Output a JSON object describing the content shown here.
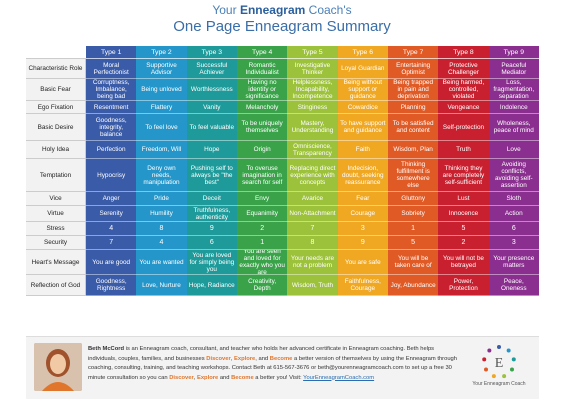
{
  "header": {
    "line1_pre": "Your ",
    "line1_bold": "Enneagram",
    "line1_post": " Coach's",
    "line2": "One Page Enneagram Summary"
  },
  "colors": {
    "type1": "#3a5ba8",
    "type2": "#2596c9",
    "type3": "#1f9a9a",
    "type4": "#3aa34a",
    "type5": "#9cc13a",
    "type6": "#f0a823",
    "type7": "#e05a25",
    "type8": "#c8202f",
    "type9": "#8a2f8f",
    "label_bg": "#f2f2f2",
    "accent": "#e0762b"
  },
  "table": {
    "types": [
      "Type 1",
      "Type 2",
      "Type 3",
      "Type 4",
      "Type 5",
      "Type 6",
      "Type 7",
      "Type 8",
      "Type 9"
    ],
    "rows": [
      {
        "label": "Characteristic Role",
        "cells": [
          "Moral Perfectionist",
          "Supportive Advisor",
          "Successful Achiever",
          "Romantic Individualist",
          "Investigative Thinker",
          "Loyal Guardian",
          "Entertaining Optimist",
          "Protective Challenger",
          "Peaceful Mediator"
        ]
      },
      {
        "label": "Basic Fear",
        "cells": [
          "Corruptness, Imbalance, being bad",
          "Being unloved",
          "Worthlessness",
          "Having no identity or significance",
          "Helplessness, Incapability, Incompetence",
          "Being without support or guidance",
          "Being trapped in pain and deprivation",
          "Being harmed, controlled, violated",
          "Loss, fragmentation, separation"
        ]
      },
      {
        "label": "Ego Fixation",
        "cells": [
          "Resentment",
          "Flattery",
          "Vanity",
          "Melancholy",
          "Stinginess",
          "Cowardice",
          "Planning",
          "Vengeance",
          "Indolence"
        ]
      },
      {
        "label": "Basic Desire",
        "cells": [
          "Goodness, integrity, balance",
          "To feel love",
          "To feel valuable",
          "To be uniquely themselves",
          "Mastery, Understanding",
          "To have support and guidance",
          "To be satisfied and content",
          "Self-protection",
          "Wholeness, peace of mind"
        ]
      },
      {
        "label": "Holy Idea",
        "cells": [
          "Perfection",
          "Freedom, Will",
          "Hope",
          "Origin",
          "Omniscience, Transparency",
          "Faith",
          "Wisdom, Plan",
          "Truth",
          "Love"
        ]
      },
      {
        "label": "Temptation",
        "cells": [
          "Hypocrisy",
          "Deny own needs, manipulation",
          "Pushing self to always be \"the best\"",
          "To overuse imagination in search for self",
          "Replacing direct experience with concepts",
          "Indecision, doubt, seeking reassurance",
          "Thinking fulfillment is somewhere else",
          "Thinking they are completely self-sufficient",
          "Avoiding conflicts, avoiding self-assertion"
        ]
      },
      {
        "label": "Vice",
        "cells": [
          "Anger",
          "Pride",
          "Deceit",
          "Envy",
          "Avarice",
          "Fear",
          "Gluttony",
          "Lust",
          "Sloth"
        ]
      },
      {
        "label": "Virtue",
        "cells": [
          "Serenity",
          "Humility",
          "Truthfulness, authenticity",
          "Equanimity",
          "Non-Attachment",
          "Courage",
          "Sobriety",
          "Innocence",
          "Action"
        ]
      },
      {
        "label": "Stress",
        "cells": [
          "4",
          "8",
          "9",
          "2",
          "7",
          "3",
          "1",
          "5",
          "6"
        ]
      },
      {
        "label": "Security",
        "cells": [
          "7",
          "4",
          "6",
          "1",
          "8",
          "9",
          "5",
          "2",
          "3"
        ]
      },
      {
        "label": "Heart's Message",
        "cells": [
          "You are good",
          "You are wanted",
          "You are loved for simply being you",
          "You are seen and loved for exactly who you are",
          "Your needs are not a problem",
          "You are safe",
          "You will be taken care of",
          "You will not be betrayed",
          "Your presence matters"
        ]
      },
      {
        "label": "Reflection of God",
        "cells": [
          "Goodness, Rightness",
          "Love, Nurture",
          "Hope, Radiance",
          "Creativity, Depth",
          "Wisdom, Truth",
          "Faithfulness, Courage",
          "Joy, Abundance",
          "Power, Protection",
          "Peace, Oneness"
        ]
      }
    ]
  },
  "footer": {
    "name": "Beth McCord",
    "bio1": " is an Enneagram coach, consultant, and teacher who holds her advanced certificate in Enneagram coaching. Beth helps individuals, couples, families, and businesses ",
    "discover": "Discover",
    "comma": ", ",
    "explore": "Explore",
    "bio2": ", and ",
    "become": "Become",
    "bio3": " a better version of themselves by using the Enneagram through coaching, consulting, training, and teaching workshops.  Contact Beth at 615-567-3676 or beth@yourenneagramcoach.com to set up a free 30 minute consultation so you can ",
    "discover2": "Discover",
    "comma2": ", ",
    "explore2": "Explore",
    "and2": " and ",
    "become2": "Become",
    "bio4": " a better you! Visit: ",
    "link": "YourEnneagramCoach.com",
    "logo_text": "Your Enneagram Coach",
    "logo_letter": "E"
  }
}
